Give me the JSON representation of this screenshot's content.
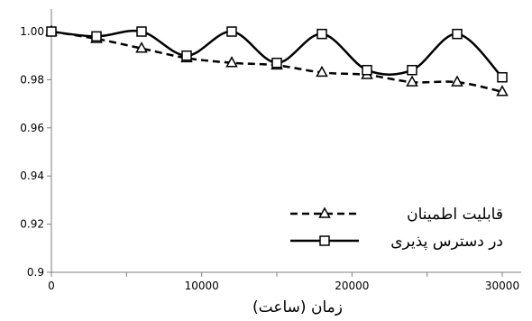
{
  "chart_data": {
    "type": "line",
    "xlabel": "زمان (ساعت)",
    "ylabel": "",
    "xlim": [
      0,
      30000
    ],
    "ylim": [
      0.9,
      1.0
    ],
    "x_ticks": [
      "0",
      "10000",
      "20000",
      "30000"
    ],
    "y_ticks": [
      "0.9",
      "0.92",
      "0.94",
      "0.96",
      "0.98",
      "1.00"
    ],
    "grid": false,
    "legend_position": "bottom-right",
    "series": [
      {
        "name": "قابلیت اطمینان",
        "style": "dashed",
        "marker": "triangle",
        "color": "#000000",
        "x": [
          0,
          3000,
          6000,
          9000,
          12000,
          15000,
          18000,
          21000,
          24000,
          27000,
          30000
        ],
        "y": [
          1.0,
          0.997,
          0.993,
          0.989,
          0.987,
          0.986,
          0.983,
          0.982,
          0.979,
          0.979,
          0.975
        ]
      },
      {
        "name": "در دسترس پذیری",
        "style": "solid",
        "marker": "square",
        "color": "#000000",
        "x": [
          0,
          3000,
          6000,
          9000,
          12000,
          15000,
          18000,
          21000,
          24000,
          27000,
          30000
        ],
        "y": [
          1.0,
          0.998,
          1.0,
          0.99,
          1.0,
          0.987,
          0.999,
          0.984,
          0.984,
          0.999,
          0.981
        ]
      }
    ]
  }
}
